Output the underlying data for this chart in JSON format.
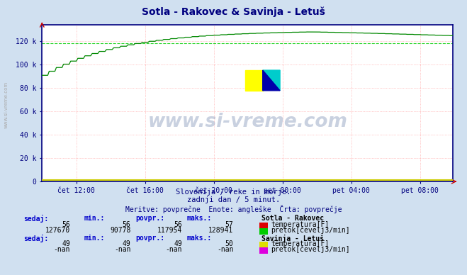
{
  "title": "Sotla - Rakovec & Savinja - Letuš",
  "title_color": "#000080",
  "bg_color": "#d0e0f0",
  "plot_bg_color": "#ffffff",
  "axis_color": "#000080",
  "line_color": "#008800",
  "avg_line_color": "#00cc00",
  "x_ticks_labels": [
    "čet 12:00",
    "čet 16:00",
    "čet 20:00",
    "pet 00:00",
    "pet 04:00",
    "pet 08:00"
  ],
  "y_tick_labels": [
    "0",
    "20 k",
    "40 k",
    "60 k",
    "80 k",
    "100 k",
    "120 k"
  ],
  "y_ticks": [
    0,
    20000,
    40000,
    60000,
    80000,
    100000,
    120000
  ],
  "y_lim": [
    0,
    134000
  ],
  "flow_min": 90778,
  "flow_max": 128941,
  "flow_povpr": 117954,
  "watermark_text": "www.si-vreme.com",
  "subtitle1": "Slovenija / reke in morje.",
  "subtitle2": "zadnji dan / 5 minut.",
  "subtitle3": "Meritve: povprečne  Enote: angleške  Črta: povprečje",
  "subtitle_color": "#000080",
  "table_header_color": "#0000cc",
  "table_value_color": "#000000",
  "station1_name": "Sotla - Rakovec",
  "station1_temp_sedaj": "56",
  "station1_temp_min": "56",
  "station1_temp_povpr": "56",
  "station1_temp_maks": "57",
  "station1_flow_sedaj": "127670",
  "station1_flow_min": "90778",
  "station1_flow_povpr": "117954",
  "station1_flow_maks": "128941",
  "station1_temp_color": "#dd0000",
  "station1_flow_color": "#00cc00",
  "station2_name": "Savinja - Letuš",
  "station2_temp_sedaj": "49",
  "station2_temp_min": "49",
  "station2_temp_povpr": "49",
  "station2_temp_maks": "50",
  "station2_flow_sedaj": "-nan",
  "station2_flow_min": "-nan",
  "station2_flow_povpr": "-nan",
  "station2_flow_maks": "-nan",
  "station2_temp_color": "#dddd00",
  "station2_flow_color": "#dd00dd",
  "sidebar_text": "www.si-vreme.com"
}
